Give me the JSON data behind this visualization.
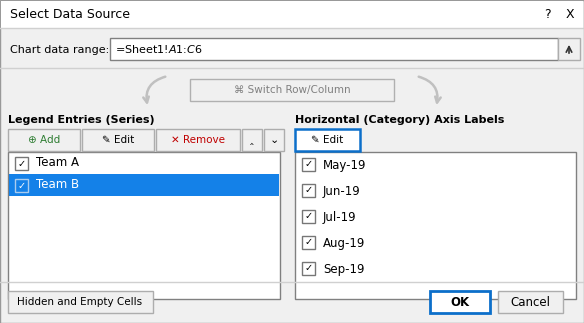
{
  "title": "Select Data Source",
  "chart_data_range_label": "Chart data range:",
  "chart_data_range_value": "=Sheet1!$A$1:$C$6",
  "switch_btn_text": "⌘ Switch Row/Column",
  "legend_section_title": "Legend Entries (Series)",
  "axis_section_title": "Horizontal (Category) Axis Labels",
  "legend_buttons": [
    "Add",
    "Edit",
    "Remove"
  ],
  "axis_button": "Edit",
  "legend_entries": [
    "Team A",
    "Team B"
  ],
  "legend_checked": [
    true,
    true
  ],
  "legend_selected": 1,
  "axis_labels": [
    "May-19",
    "Jun-19",
    "Jul-19",
    "Aug-19",
    "Sep-19"
  ],
  "axis_checked": [
    true,
    true,
    true,
    true,
    true
  ],
  "bottom_left_btn": "Hidden and Empty Cells",
  "ok_btn": "OK",
  "cancel_btn": "Cancel",
  "bg_color": "#f0f0f0",
  "white": "#ffffff",
  "selected_row_color": "#1481e8",
  "selected_text_color": "#ffffff",
  "border_color": "#adadad",
  "dark_border": "#767676",
  "text_color": "#000000",
  "button_bg": "#f0f0f0",
  "ok_border_color": "#0c6fca",
  "title_bg": "#ffffff",
  "separator_color": "#d0d0d0",
  "gray_text": "#a0a0a0",
  "add_green": "#2e7d32",
  "remove_red": "#c00000"
}
